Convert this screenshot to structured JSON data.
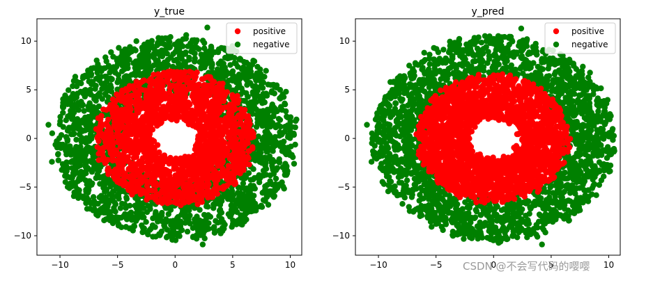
{
  "watermark": "CSDN @不会写代码的嘤嘤",
  "chart_data": [
    {
      "type": "scatter",
      "title": "y_true",
      "xlim": [
        -12,
        11
      ],
      "ylim": [
        -12,
        12.3
      ],
      "xticks": [
        -10,
        -5,
        0,
        5,
        10
      ],
      "yticks": [
        -10,
        -5,
        0,
        5,
        10
      ],
      "grid": false,
      "legend": "top-right",
      "series": [
        {
          "name": "positive",
          "color": "#ff0000",
          "distribution": {
            "shape": "ring",
            "r_min": 2.0,
            "r_max": 6.8,
            "count": 1800
          },
          "points": [
            [
              -0.8,
              6.5
            ],
            [
              0.5,
              6.8
            ],
            [
              5.8,
              0.4
            ],
            [
              -6.0,
              -0.8
            ],
            [
              4.4,
              -3.6
            ],
            [
              -1.0,
              -6.2
            ]
          ]
        },
        {
          "name": "negative",
          "color": "#008000",
          "distribution": {
            "shape": "ring",
            "r_min": 4.5,
            "r_max": 10.5,
            "count": 2400
          },
          "points": [
            [
              2.8,
              11.4
            ],
            [
              -11.0,
              1.4
            ],
            [
              -10.7,
              -2.4
            ],
            [
              2.4,
              -10.9
            ],
            [
              10.0,
              0.2
            ],
            [
              9.6,
              -3.0
            ],
            [
              -8.0,
              6.2
            ],
            [
              7.4,
              -7.0
            ]
          ]
        }
      ]
    },
    {
      "type": "scatter",
      "title": "y_pred",
      "xlim": [
        -12,
        11
      ],
      "ylim": [
        -12,
        12.3
      ],
      "xticks": [
        -10,
        -5,
        0,
        5,
        10
      ],
      "yticks": [
        -10,
        -5,
        0,
        5,
        10
      ],
      "grid": false,
      "legend": "top-right",
      "series": [
        {
          "name": "positive",
          "color": "#ff0000",
          "distribution": {
            "shape": "ring",
            "r_min": 2.2,
            "r_max": 6.5,
            "count": 2300
          },
          "points": [
            [
              0.0,
              6.5
            ],
            [
              6.4,
              0.0
            ],
            [
              -6.4,
              0.0
            ],
            [
              0.0,
              -6.3
            ]
          ]
        },
        {
          "name": "negative",
          "color": "#008000",
          "distribution": {
            "shape": "ring",
            "r_min": 6.0,
            "r_max": 10.5,
            "count": 2100
          },
          "points": [
            [
              2.4,
              11.3
            ],
            [
              -11.0,
              1.4
            ],
            [
              -10.6,
              -2.4
            ],
            [
              4.2,
              -10.9
            ],
            [
              10.0,
              0.2
            ],
            [
              9.6,
              -3.0
            ],
            [
              -8.2,
              6.0
            ],
            [
              7.3,
              -7.1
            ]
          ]
        }
      ]
    }
  ]
}
